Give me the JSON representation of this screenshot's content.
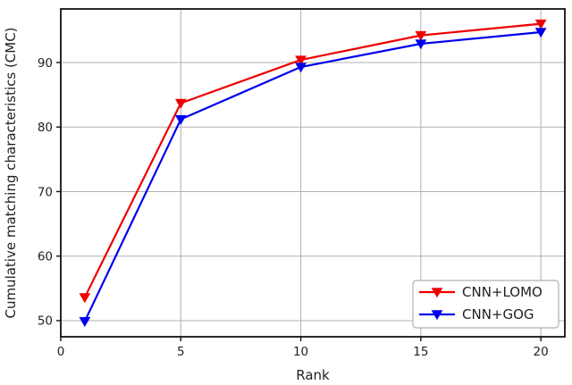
{
  "figure": {
    "background": "#ffffff"
  },
  "chart_data": {
    "type": "line",
    "title": "",
    "xlabel": "Rank",
    "ylabel": "Cumulative matching characteristics (CMC)",
    "x": [
      1,
      5,
      10,
      15,
      20
    ],
    "series": [
      {
        "name": "CNN+LOMO",
        "color": "#ee0000",
        "marker": "triangle-down",
        "values": [
          53.6,
          83.7,
          90.4,
          94.2,
          96.0
        ]
      },
      {
        "name": "CNN+GOG",
        "color": "#0000ee",
        "marker": "triangle-down",
        "values": [
          49.9,
          81.2,
          89.3,
          92.9,
          94.7
        ]
      }
    ],
    "xticks": [
      0,
      5,
      10,
      15,
      20
    ],
    "yticks": [
      50,
      60,
      70,
      80,
      90
    ],
    "xlim": [
      0,
      21
    ],
    "ylim": [
      47.5,
      98.3
    ],
    "grid": true,
    "grid_color": "#b0b0b0",
    "axis_color": "#111111",
    "tick_label_color": "#222222",
    "legend": {
      "position": "lower right",
      "entries": [
        "CNN+LOMO",
        "CNN+GOG"
      ],
      "border_color": "#b0b0b0",
      "background": "#ffffff"
    }
  }
}
